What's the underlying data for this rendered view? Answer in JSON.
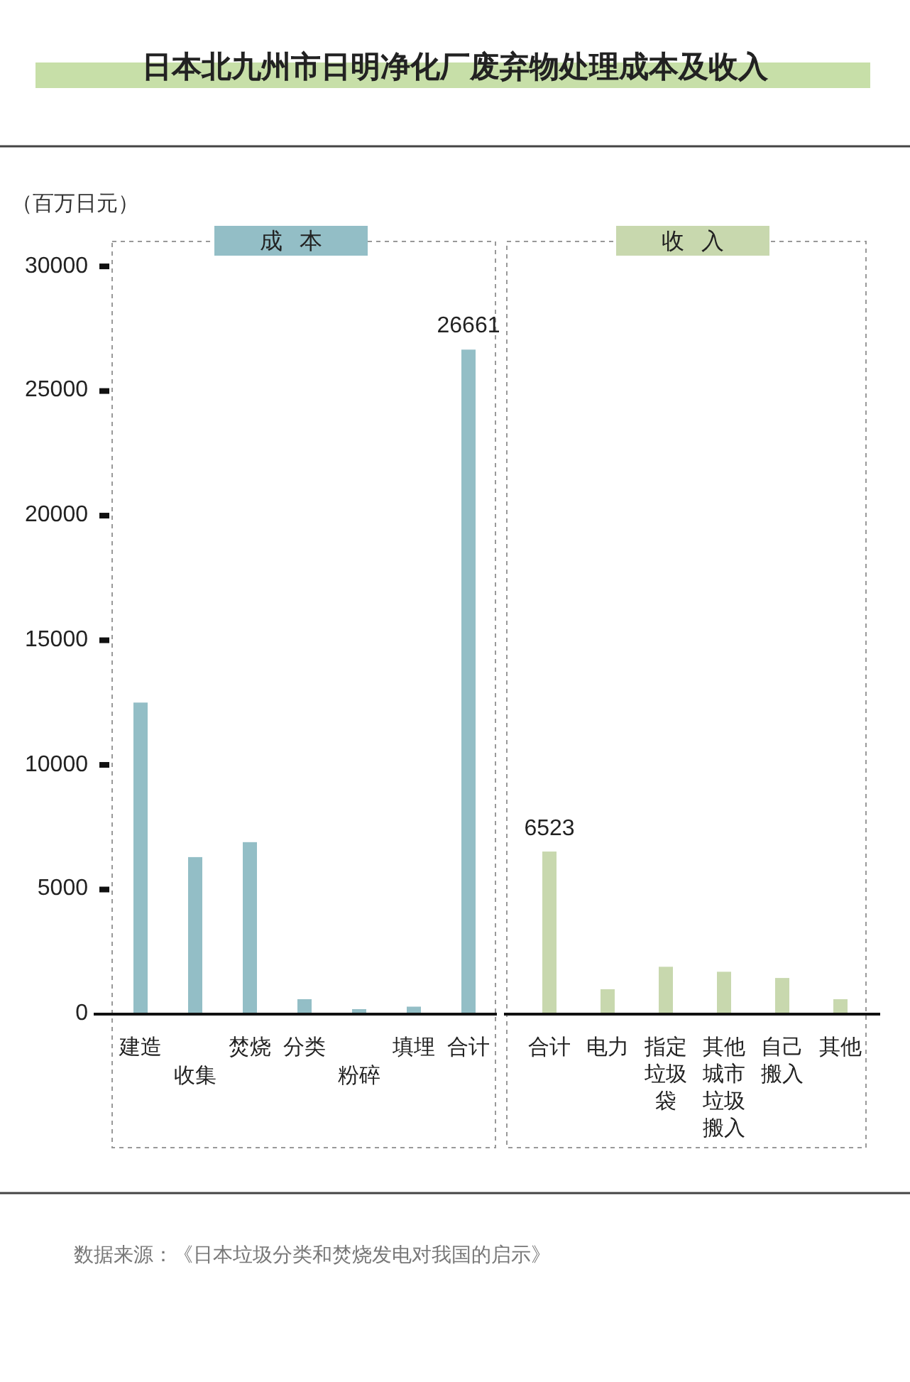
{
  "chart_data": [
    {
      "type": "bar",
      "title": "日本北九州市日明净化厂废弃物处理成本及收入",
      "subtitle": "成本",
      "ylabel": "（百万日元）",
      "categories": [
        "建造",
        "收集",
        "焚烧",
        "分类",
        "粉碎",
        "填埋",
        "合计"
      ],
      "values": [
        12500,
        6300,
        6900,
        600,
        200,
        300,
        26661
      ],
      "value_labels": [
        null,
        null,
        null,
        null,
        null,
        null,
        "26661"
      ],
      "color": "#93bec6",
      "ylim": [
        0,
        31000
      ],
      "yticks": [
        0,
        5000,
        10000,
        15000,
        20000,
        25000,
        30000
      ],
      "annotations": [
        "数据来源：《日本垃圾分类和焚烧发电对我国的启示》"
      ]
    },
    {
      "type": "bar",
      "subtitle": "收入",
      "categories": [
        "合计",
        "电力",
        "指定垃圾袋",
        "其他城市垃圾搬入",
        "自己搬入",
        "其他"
      ],
      "values": [
        6523,
        1000,
        1900,
        1700,
        1450,
        600
      ],
      "value_labels": [
        "6523",
        null,
        null,
        null,
        null,
        null
      ],
      "color": "#c8d8ae",
      "ylim": [
        0,
        31000
      ],
      "tick_labels": "x"
    }
  ]
}
